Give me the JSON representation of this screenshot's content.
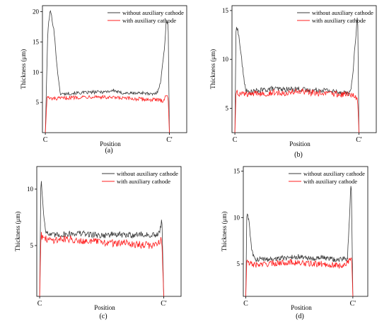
{
  "colors": {
    "without": "#3a3a3a",
    "with": "#ff1f1f",
    "axis": "#000000"
  },
  "chart_data": [
    {
      "type": "line",
      "panel_label": "(a)",
      "xlabel": "Position",
      "ylabel": "Thickness (μm)",
      "ylim": [
        0,
        21
      ],
      "yticks": [
        5,
        10,
        15,
        20
      ],
      "x_ticklabels": [
        "C",
        "C'"
      ],
      "legend": "top-right",
      "series": [
        {
          "name": "without auxiliary cathode",
          "color": "#3a3a3a",
          "x": [
            0.0,
            0.02,
            0.04,
            0.07,
            0.09,
            0.11,
            0.12,
            0.14,
            0.2,
            0.3,
            0.4,
            0.5,
            0.55,
            0.6,
            0.7,
            0.8,
            0.83,
            0.86,
            0.9,
            0.93,
            0.96,
            0.975,
            0.99,
            1.0
          ],
          "y": [
            0,
            17,
            20.3,
            17,
            12,
            8,
            6.5,
            6.4,
            6.5,
            6.6,
            6.7,
            6.8,
            7.0,
            6.6,
            6.5,
            6.6,
            6.4,
            6.3,
            6.6,
            8.5,
            14,
            18.5,
            18,
            0
          ]
        },
        {
          "name": "with auxiliary cathode",
          "color": "#ff1f1f",
          "x": [
            0.0,
            0.015,
            0.03,
            0.1,
            0.2,
            0.3,
            0.4,
            0.5,
            0.6,
            0.7,
            0.8,
            0.9,
            0.95,
            0.975,
            0.99,
            1.0
          ],
          "y": [
            0,
            6.2,
            5.6,
            5.6,
            5.8,
            5.9,
            6.0,
            5.8,
            5.7,
            5.6,
            5.5,
            5.4,
            5.3,
            6.3,
            5.5,
            0
          ]
        }
      ]
    },
    {
      "type": "line",
      "panel_label": "(b)",
      "xlabel": "Position",
      "ylabel": "Thickness (μm)",
      "ylim": [
        2.5,
        15.5
      ],
      "yticks": [
        5,
        10,
        15
      ],
      "x_ticklabels": [
        "C",
        "C'"
      ],
      "legend": "top-right",
      "series": [
        {
          "name": "without auxiliary cathode",
          "color": "#3a3a3a",
          "x": [
            0.0,
            0.01,
            0.03,
            0.05,
            0.07,
            0.09,
            0.11,
            0.2,
            0.3,
            0.4,
            0.5,
            0.6,
            0.7,
            0.8,
            0.9,
            0.93,
            0.95,
            0.97,
            0.99,
            1.0
          ],
          "y": [
            2.5,
            13.8,
            12.5,
            10.5,
            8.2,
            6.8,
            6.6,
            6.8,
            7.0,
            6.9,
            7.0,
            6.8,
            6.9,
            6.7,
            6.6,
            6.5,
            8.5,
            11.5,
            14.8,
            2.5
          ]
        },
        {
          "name": "with auxiliary cathode",
          "color": "#ff1f1f",
          "x": [
            0.0,
            0.01,
            0.03,
            0.1,
            0.2,
            0.3,
            0.4,
            0.5,
            0.6,
            0.7,
            0.8,
            0.9,
            0.95,
            0.99,
            1.0
          ],
          "y": [
            2.5,
            6.9,
            6.5,
            6.4,
            6.5,
            6.6,
            6.6,
            6.7,
            6.6,
            6.5,
            6.5,
            6.4,
            6.3,
            6.0,
            2.5
          ]
        }
      ]
    },
    {
      "type": "line",
      "panel_label": "(c)",
      "xlabel": "Position",
      "ylabel": "Thickness (μm)",
      "ylim": [
        0.5,
        12
      ],
      "yticks": [
        5,
        10
      ],
      "x_ticklabels": [
        "C",
        "C'"
      ],
      "legend": "top-right",
      "series": [
        {
          "name": "without auxiliary cathode",
          "color": "#3a3a3a",
          "x": [
            0.0,
            0.01,
            0.03,
            0.05,
            0.07,
            0.1,
            0.2,
            0.3,
            0.4,
            0.5,
            0.6,
            0.7,
            0.8,
            0.9,
            0.95,
            0.97,
            0.985,
            1.0
          ],
          "y": [
            0.5,
            11.2,
            8.0,
            6.3,
            6.0,
            5.9,
            6.0,
            6.1,
            6.0,
            5.9,
            6.0,
            5.9,
            6.0,
            5.9,
            5.9,
            6.2,
            7.6,
            0.5
          ]
        },
        {
          "name": "with auxiliary cathode",
          "color": "#ff1f1f",
          "x": [
            0.0,
            0.01,
            0.03,
            0.1,
            0.2,
            0.3,
            0.4,
            0.5,
            0.6,
            0.7,
            0.8,
            0.9,
            0.95,
            0.985,
            1.0
          ],
          "y": [
            0.5,
            6.0,
            5.6,
            5.5,
            5.6,
            5.5,
            5.4,
            5.3,
            5.2,
            5.2,
            5.1,
            5.0,
            5.2,
            5.6,
            0.5
          ]
        }
      ]
    },
    {
      "type": "line",
      "panel_label": "(d)",
      "xlabel": "Position",
      "ylabel": "Thickness (μm)",
      "ylim": [
        1.5,
        15.5
      ],
      "yticks": [
        5,
        10,
        15
      ],
      "x_ticklabels": [
        "C",
        "C'"
      ],
      "legend": "top-right",
      "series": [
        {
          "name": "without auxiliary cathode",
          "color": "#3a3a3a",
          "x": [
            0.0,
            0.01,
            0.03,
            0.05,
            0.07,
            0.09,
            0.2,
            0.3,
            0.4,
            0.5,
            0.6,
            0.7,
            0.8,
            0.9,
            0.95,
            0.97,
            0.985,
            1.0
          ],
          "y": [
            1.5,
            10.7,
            9.5,
            7.0,
            5.8,
            5.5,
            5.5,
            5.6,
            5.7,
            5.8,
            5.6,
            5.7,
            5.5,
            5.5,
            5.6,
            10.5,
            14.4,
            1.5
          ]
        },
        {
          "name": "with auxiliary cathode",
          "color": "#ff1f1f",
          "x": [
            0.0,
            0.01,
            0.03,
            0.1,
            0.2,
            0.3,
            0.4,
            0.5,
            0.6,
            0.7,
            0.8,
            0.9,
            0.95,
            0.99,
            1.0
          ],
          "y": [
            1.5,
            5.5,
            5.0,
            4.9,
            5.0,
            5.1,
            5.2,
            5.1,
            5.0,
            5.0,
            4.9,
            4.8,
            5.2,
            5.4,
            1.5
          ]
        }
      ]
    }
  ]
}
